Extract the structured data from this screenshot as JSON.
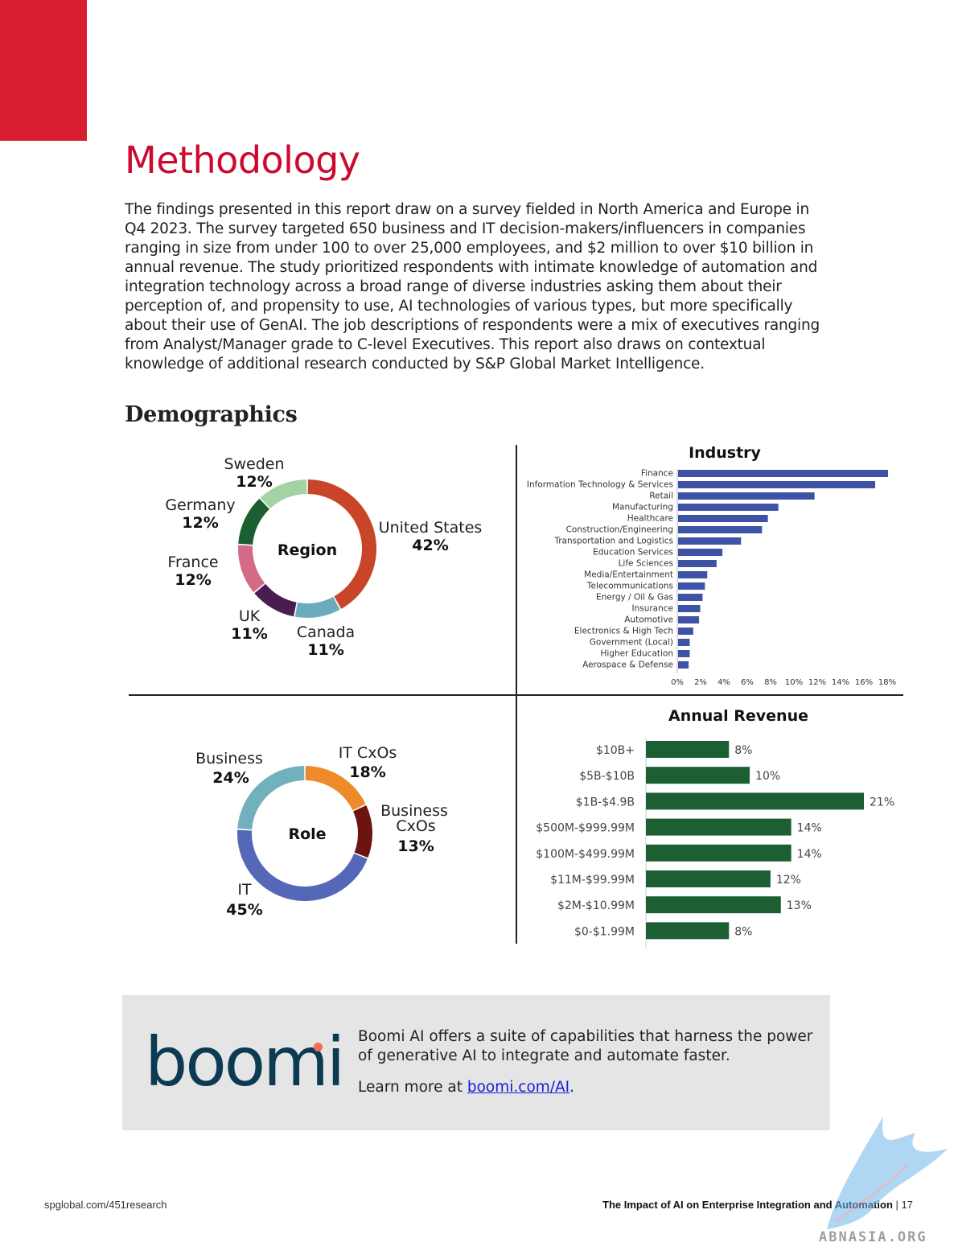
{
  "page": {
    "title": "Methodology",
    "intro": "The findings presented in this report draw on a survey fielded in North America and Europe in Q4 2023. The survey targeted 650 business and IT decision-makers/influencers in companies ranging in size from under 100 to over 25,000 employees, and $2 million to over $10 billion in annual revenue. The study prioritized respondents with intimate knowledge of automation and integration technology across a broad range of diverse industries asking them about their perception of, and propensity to use, AI technologies of various types, but more specifically about their use of GenAI. The job descriptions of respondents were a mix of executives ranging from Analyst/Manager grade to C-level Executives. This report also draws on contextual knowledge of additional research conducted by S&P Global Market Intelligence.",
    "demographics_heading": "Demographics"
  },
  "colors": {
    "accent_red": "#cc0a2f",
    "industry_bar": "#3f53a6",
    "revenue_bar": "#1d5e33"
  },
  "chart_data": [
    {
      "type": "pie",
      "title": "Region",
      "slices": [
        {
          "label": "United States",
          "value": 42,
          "display": "42%",
          "color": "#c9452a"
        },
        {
          "label": "Canada",
          "value": 11,
          "display": "11%",
          "color": "#6aacbd"
        },
        {
          "label": "UK",
          "value": 11,
          "display": "11%",
          "color": "#4b1c52"
        },
        {
          "label": "France",
          "value": 12,
          "display": "12%",
          "color": "#d36a86"
        },
        {
          "label": "Germany",
          "value": 12,
          "display": "12%",
          "color": "#1b5e31"
        },
        {
          "label": "Sweden",
          "value": 12,
          "display": "12%",
          "color": "#a1d3a3"
        }
      ]
    },
    {
      "type": "bar",
      "orientation": "horizontal",
      "title": "Industry",
      "categories": [
        "Finance",
        "Information Technology & Services",
        "Retail",
        "Manufacturing",
        "Healthcare",
        "Construction/Engineering",
        "Transportation and Logistics",
        "Education Services",
        "Life Sciences",
        "Media/Entertainment",
        "Telecommunications",
        "Energy / Oil & Gas",
        "Insurance",
        "Automotive",
        "Electronics & High Tech",
        "Government (Local)",
        "Higher Education",
        "Aerospace & Defense"
      ],
      "values": [
        18.0,
        16.9,
        11.7,
        8.6,
        7.7,
        7.2,
        5.4,
        3.8,
        3.3,
        2.5,
        2.3,
        2.1,
        1.9,
        1.8,
        1.3,
        1.0,
        1.0,
        0.9
      ],
      "xticks": [
        "0%",
        "2%",
        "4%",
        "6%",
        "8%",
        "10%",
        "12%",
        "14%",
        "16%",
        "18%"
      ],
      "xlim": [
        0,
        18
      ]
    },
    {
      "type": "pie",
      "title": "Role",
      "slices": [
        {
          "label": "IT CxOs",
          "value": 18,
          "display": "18%",
          "color": "#ed8a2a"
        },
        {
          "label": "Business CxOs",
          "value": 13,
          "display": "13%",
          "color": "#6b1410"
        },
        {
          "label": "IT",
          "value": 45,
          "display": "45%",
          "color": "#5568b8"
        },
        {
          "label": "Business",
          "value": 24,
          "display": "24%",
          "color": "#72b0bd"
        }
      ]
    },
    {
      "type": "bar",
      "orientation": "horizontal",
      "title": "Annual Revenue",
      "categories": [
        "$10B+",
        "$5B-$10B",
        "$1B-$4.9B",
        "$500M-$999.99M",
        "$100M-$499.99M",
        "$11M-$99.99M",
        "$2M-$10.99M",
        "$0-$1.99M"
      ],
      "values": [
        8,
        10,
        21,
        14,
        14,
        12,
        13,
        8
      ],
      "value_labels": [
        "8%",
        "10%",
        "21%",
        "14%",
        "14%",
        "12%",
        "13%",
        "8%"
      ],
      "xlim": [
        0,
        21
      ]
    }
  ],
  "promo": {
    "logo": "boomi",
    "text": "Boomi AI offers a suite of capabilities that harness the power of generative AI to integrate and automate faster.",
    "link_prefix": "Learn more at ",
    "link_text": "boomi.com/AI",
    "link_suffix": "."
  },
  "footer": {
    "left": "spglobal.com/451research",
    "report_title": "The Impact of AI on Enterprise Integration and Automation",
    "separator": " | ",
    "page_number": "17"
  },
  "watermark": {
    "text": "ABNASIA.ORG"
  }
}
